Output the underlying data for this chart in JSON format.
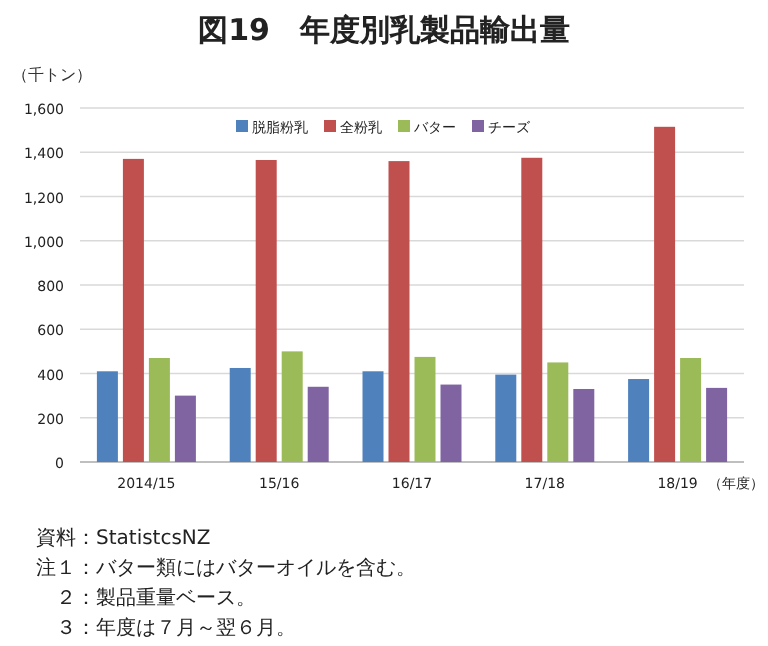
{
  "chart_data": {
    "type": "bar",
    "title": "図19　年度別乳製品輸出量",
    "ylabel": "（千トン）",
    "xlabel": "（年度）",
    "categories": [
      "2014/15",
      "15/16",
      "16/17",
      "17/18",
      "18/19"
    ],
    "series": [
      {
        "name": "脱脂粉乳",
        "color": "#4f81bd",
        "values": [
          410,
          425,
          410,
          395,
          375
        ]
      },
      {
        "name": "全粉乳",
        "color": "#c0504d",
        "values": [
          1370,
          1365,
          1360,
          1375,
          1515
        ]
      },
      {
        "name": "バター",
        "color": "#9bbb59",
        "values": [
          470,
          500,
          475,
          450,
          470
        ]
      },
      {
        "name": "チーズ",
        "color": "#8064a2",
        "values": [
          300,
          340,
          350,
          330,
          335
        ]
      }
    ],
    "ylim": [
      0,
      1600
    ],
    "yticks": [
      {
        "value": 0,
        "label": "0"
      },
      {
        "value": 200,
        "label": "200"
      },
      {
        "value": 400,
        "label": "400"
      },
      {
        "value": 600,
        "label": "600"
      },
      {
        "value": 800,
        "label": "800"
      },
      {
        "value": 1000,
        "label": "1,000"
      },
      {
        "value": 1200,
        "label": "1,200"
      },
      {
        "value": 1400,
        "label": "1,400"
      },
      {
        "value": 1600,
        "label": "1,600"
      }
    ],
    "grid": "y",
    "legend": "top",
    "annotations": [
      "資料：StatistcsNZ",
      "注１：バター類にはバターオイルを含む。",
      "　２：製品重量ベース。",
      "　３：年度は７月～翌６月。"
    ]
  }
}
